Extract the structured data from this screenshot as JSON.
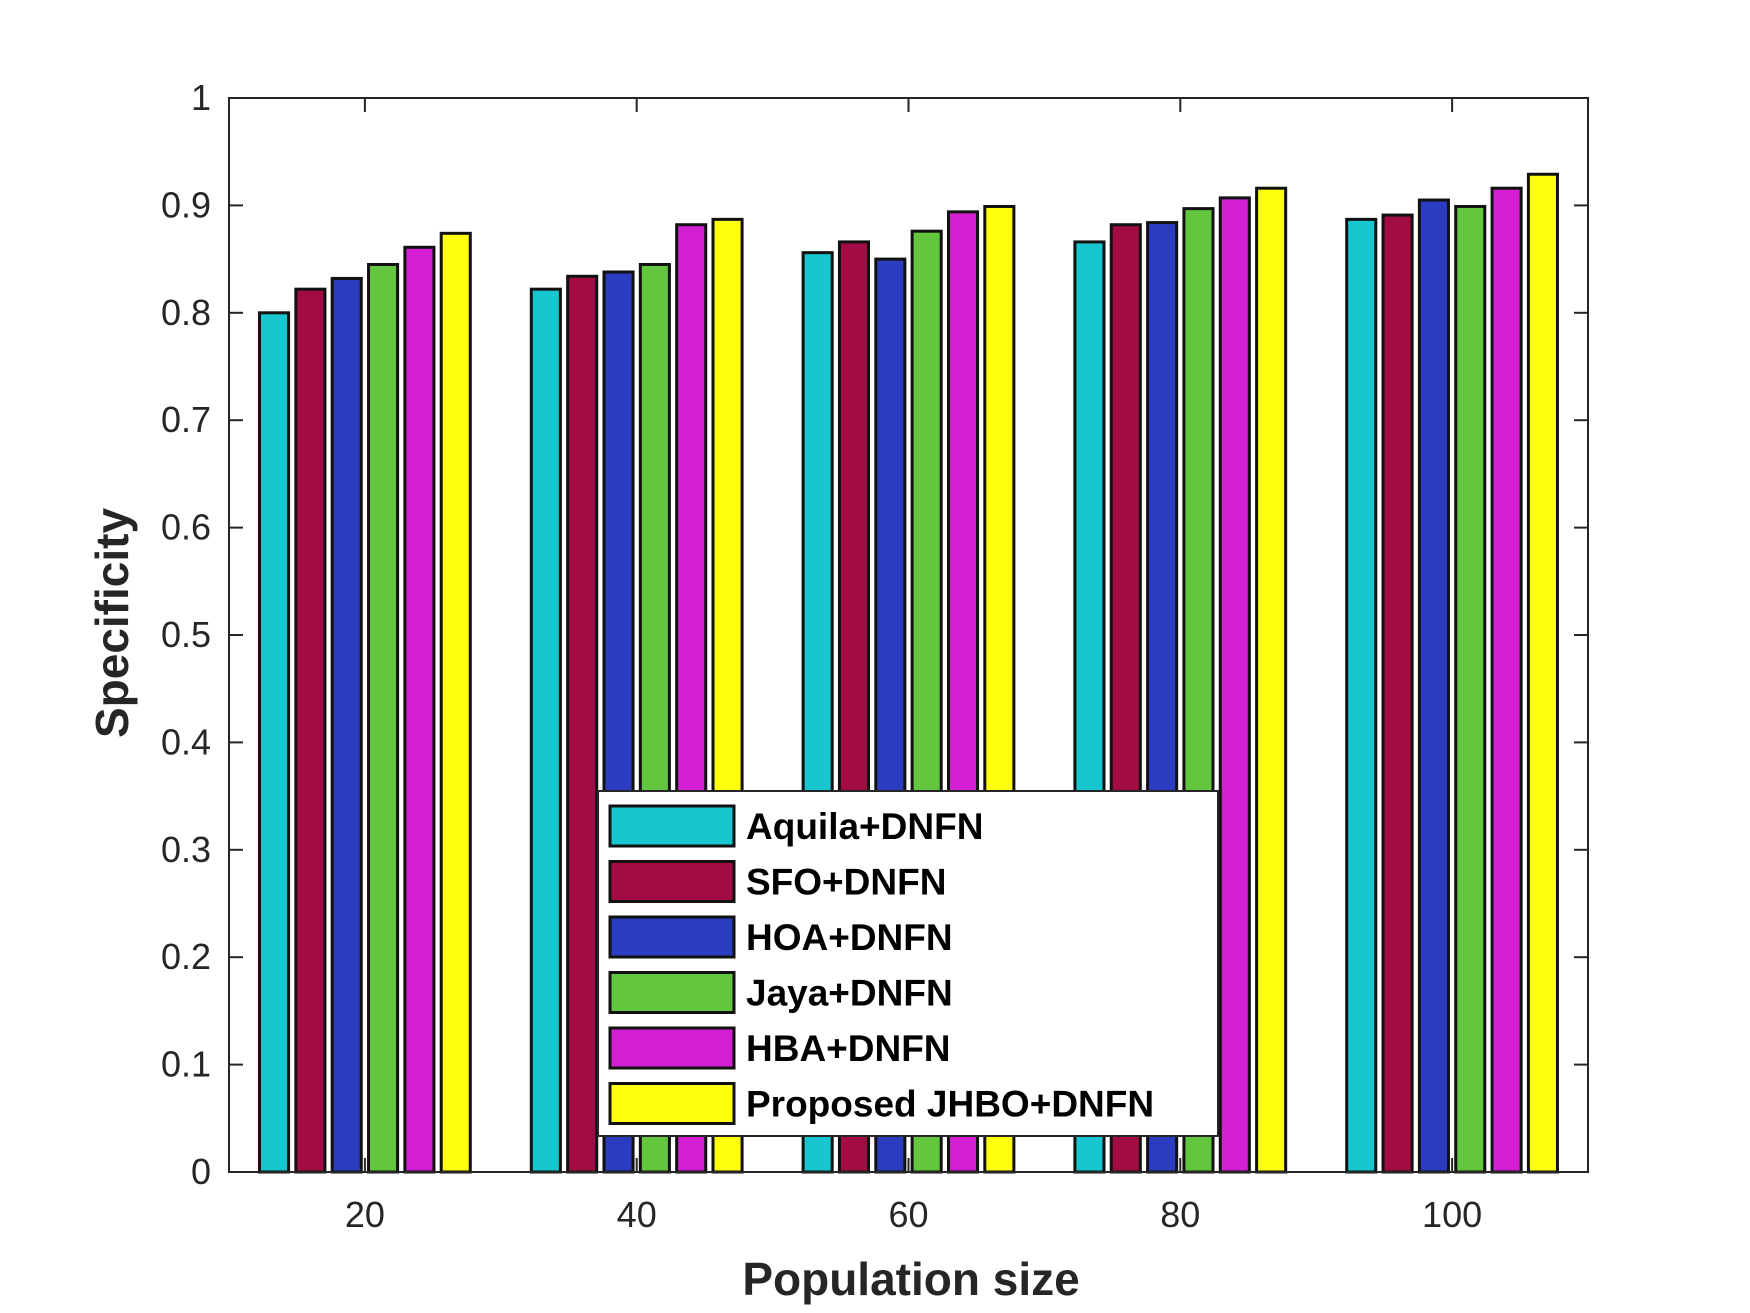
{
  "chart_data": {
    "type": "bar",
    "xlabel": "Population size",
    "ylabel": "Specificity",
    "categories": [
      "20",
      "40",
      "60",
      "80",
      "100"
    ],
    "ylim": [
      0,
      1
    ],
    "yticks": [
      "0",
      "0.1",
      "0.2",
      "0.3",
      "0.4",
      "0.5",
      "0.6",
      "0.7",
      "0.8",
      "0.9",
      "1"
    ],
    "grid": false,
    "legend_position": "bottom-center",
    "series": [
      {
        "name": "Aquila+DNFN",
        "color": "#17c6cf",
        "values": [
          0.8,
          0.822,
          0.856,
          0.866,
          0.887
        ]
      },
      {
        "name": "SFO+DNFN",
        "color": "#a20c45",
        "values": [
          0.822,
          0.834,
          0.866,
          0.882,
          0.891
        ]
      },
      {
        "name": "HOA+DNFN",
        "color": "#2a3cc0",
        "values": [
          0.832,
          0.838,
          0.85,
          0.884,
          0.905
        ]
      },
      {
        "name": "Jaya+DNFN",
        "color": "#63c63f",
        "values": [
          0.845,
          0.845,
          0.876,
          0.897,
          0.899
        ]
      },
      {
        "name": "HBA+DNFN",
        "color": "#d41fd4",
        "values": [
          0.861,
          0.882,
          0.894,
          0.907,
          0.916
        ]
      },
      {
        "name": "Proposed JHBO+DNFN",
        "color": "#ffff0d",
        "values": [
          0.874,
          0.887,
          0.899,
          0.916,
          0.929
        ]
      }
    ]
  }
}
